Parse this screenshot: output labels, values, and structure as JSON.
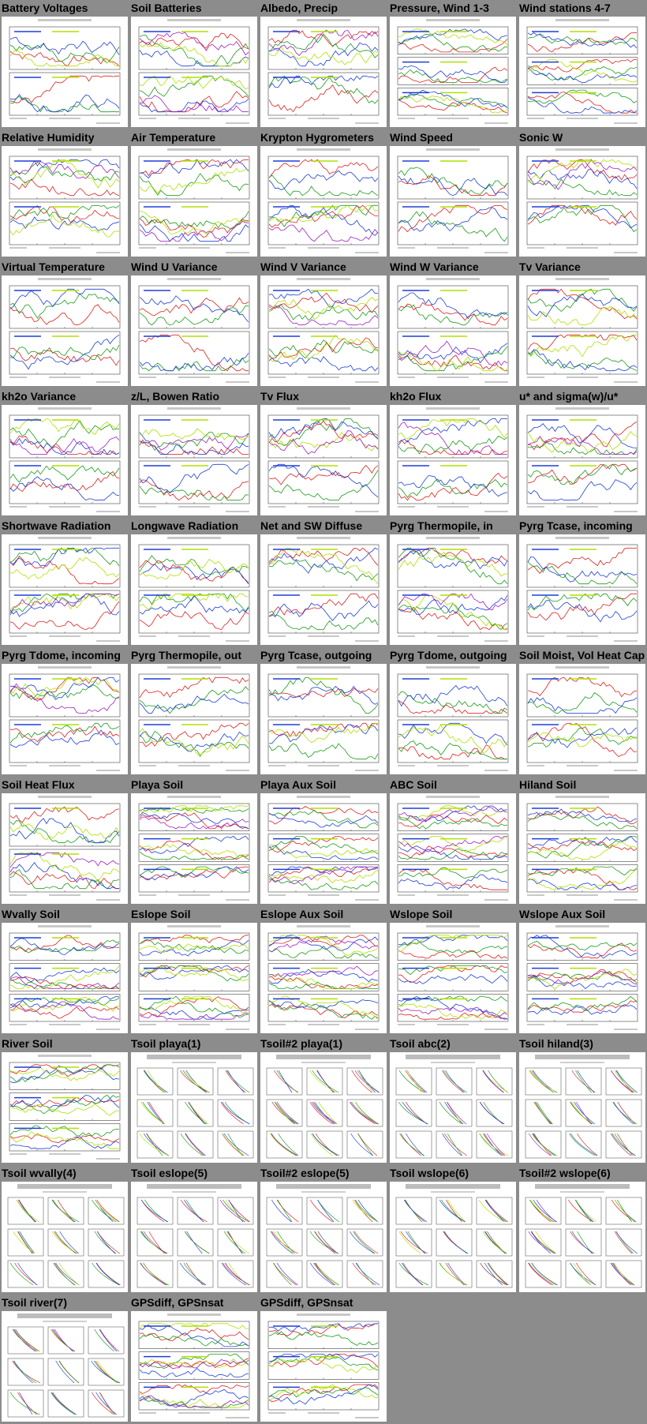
{
  "page": {
    "background": "#8c8c8c",
    "series_colors": [
      "#e02020",
      "#1a9c1a",
      "#1f3fd8",
      "#b0e000",
      "#a020c0",
      "#20b8c8",
      "#ff9900",
      "#888888"
    ]
  },
  "tiles": [
    {
      "label": "Battery Voltages",
      "kind": "ts2"
    },
    {
      "label": "Soil Batteries",
      "kind": "ts2"
    },
    {
      "label": "Albedo, Precip",
      "kind": "ts2"
    },
    {
      "label": "Pressure, Wind 1-3",
      "kind": "ts3"
    },
    {
      "label": "Wind stations 4-7",
      "kind": "ts3"
    },
    {
      "label": "Relative Humidity",
      "kind": "ts2"
    },
    {
      "label": "Air Temperature",
      "kind": "ts2"
    },
    {
      "label": "Krypton Hygrometers",
      "kind": "ts2"
    },
    {
      "label": "Wind Speed",
      "kind": "ts2"
    },
    {
      "label": "Sonic W",
      "kind": "ts2"
    },
    {
      "label": "Virtual Temperature",
      "kind": "ts2"
    },
    {
      "label": "Wind U Variance",
      "kind": "ts2"
    },
    {
      "label": "Wind V Variance",
      "kind": "ts2"
    },
    {
      "label": "Wind W Variance",
      "kind": "ts2"
    },
    {
      "label": "Tv Variance",
      "kind": "ts2"
    },
    {
      "label": "kh2o Variance",
      "kind": "ts2"
    },
    {
      "label": "z/L, Bowen Ratio",
      "kind": "ts2"
    },
    {
      "label": "Tv Flux",
      "kind": "ts2"
    },
    {
      "label": "kh2o Flux",
      "kind": "ts2"
    },
    {
      "label": "u* and sigma(w)/u*",
      "kind": "ts2"
    },
    {
      "label": "Shortwave Radiation",
      "kind": "ts2"
    },
    {
      "label": "Longwave Radiation",
      "kind": "ts2"
    },
    {
      "label": "Net and SW Diffuse",
      "kind": "ts2"
    },
    {
      "label": "Pyrg Thermopile, in",
      "kind": "ts2"
    },
    {
      "label": "Pyrg Tcase, incoming",
      "kind": "ts2"
    },
    {
      "label": "Pyrg Tdome, incoming",
      "kind": "ts2"
    },
    {
      "label": "Pyrg Thermopile, out",
      "kind": "ts2"
    },
    {
      "label": "Pyrg Tcase, outgoing",
      "kind": "ts2"
    },
    {
      "label": "Pyrg Tdome, outgoing",
      "kind": "ts2"
    },
    {
      "label": "Soil Moist, Vol Heat Cap",
      "kind": "ts2"
    },
    {
      "label": "Soil Heat Flux",
      "kind": "ts2"
    },
    {
      "label": "Playa Soil",
      "kind": "ts3"
    },
    {
      "label": "Playa Aux Soil",
      "kind": "ts3"
    },
    {
      "label": "ABC Soil",
      "kind": "ts3"
    },
    {
      "label": "Hiland Soil",
      "kind": "ts3"
    },
    {
      "label": "Wvally Soil",
      "kind": "ts3"
    },
    {
      "label": "Eslope Soil",
      "kind": "ts3"
    },
    {
      "label": "Eslope Aux Soil",
      "kind": "ts3"
    },
    {
      "label": "Wslope Soil",
      "kind": "ts3"
    },
    {
      "label": "Wslope Aux Soil",
      "kind": "ts3"
    },
    {
      "label": "River Soil",
      "kind": "ts3"
    },
    {
      "label": "Tsoil playa(1)",
      "kind": "prof"
    },
    {
      "label": "Tsoil#2 playa(1)",
      "kind": "prof"
    },
    {
      "label": "Tsoil abc(2)",
      "kind": "prof"
    },
    {
      "label": "Tsoil hiland(3)",
      "kind": "prof"
    },
    {
      "label": "Tsoil wvally(4)",
      "kind": "prof"
    },
    {
      "label": "Tsoil eslope(5)",
      "kind": "prof"
    },
    {
      "label": "Tsoil#2 eslope(5)",
      "kind": "prof"
    },
    {
      "label": "Tsoil wslope(6)",
      "kind": "prof"
    },
    {
      "label": "Tsoil#2 wslope(6)",
      "kind": "prof"
    },
    {
      "label": "Tsoil river(7)",
      "kind": "prof"
    },
    {
      "label": "GPSdiff, GPSnsat",
      "kind": "ts3"
    },
    {
      "label": "GPSdiff, GPSnsat",
      "kind": "ts3"
    }
  ]
}
